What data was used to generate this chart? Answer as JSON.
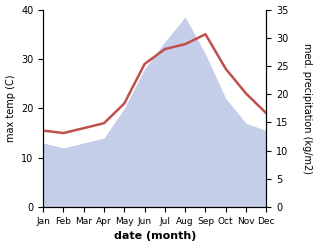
{
  "months": [
    "Jan",
    "Feb",
    "Mar",
    "Apr",
    "May",
    "Jun",
    "Jul",
    "Aug",
    "Sep",
    "Oct",
    "Nov",
    "Dec"
  ],
  "x": [
    1,
    2,
    3,
    4,
    5,
    6,
    7,
    8,
    9,
    10,
    11,
    12
  ],
  "max_temp": [
    15.5,
    15.0,
    16.0,
    17.0,
    21.0,
    29.0,
    32.0,
    33.0,
    35.0,
    28.0,
    23.0,
    19.0
  ],
  "precipitation": [
    13.0,
    12.0,
    13.0,
    14.0,
    20.0,
    28.0,
    33.5,
    38.5,
    31.0,
    22.0,
    17.0,
    15.5
  ],
  "temp_color": "#c0504d",
  "precip_fill_color": "#c5cee8",
  "left_ylim": [
    0,
    40
  ],
  "right_ylim": [
    0,
    35
  ],
  "left_yticks": [
    0,
    10,
    20,
    30,
    40
  ],
  "right_yticks": [
    0,
    5,
    10,
    15,
    20,
    25,
    30,
    35
  ],
  "xlabel": "date (month)",
  "ylabel_left": "max temp (C)",
  "ylabel_right": "med. precipitation (kg/m2)",
  "bg_color": "#ffffff"
}
